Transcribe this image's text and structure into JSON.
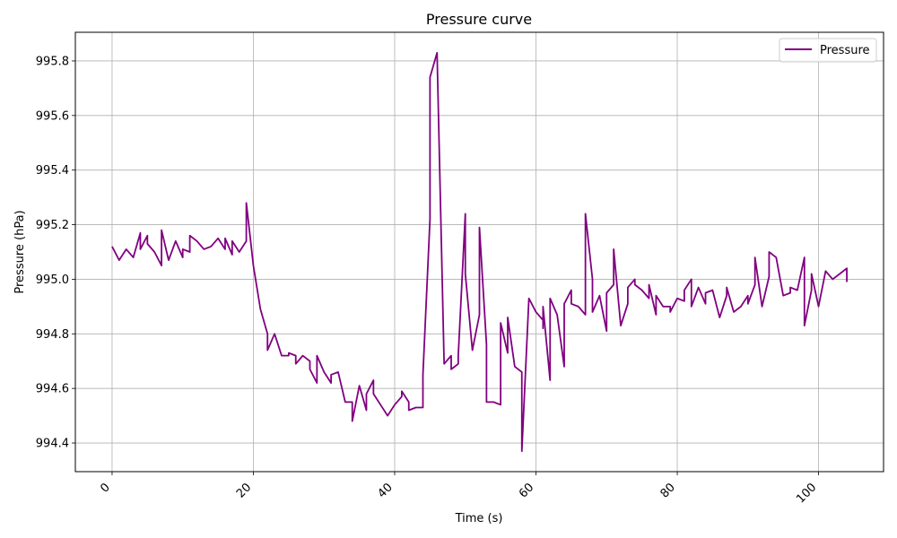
{
  "chart_data": {
    "type": "line",
    "title": "Pressure curve",
    "xlabel": "Time (s)",
    "ylabel": "Pressure (hPa)",
    "xlim": [
      -5.2,
      109.2
    ],
    "ylim": [
      994.295,
      995.905
    ],
    "xticks": [
      0,
      20,
      40,
      60,
      80,
      100
    ],
    "xtick_labels": [
      "0",
      "20",
      "40",
      "60",
      "80",
      "100"
    ],
    "yticks": [
      994.4,
      994.6,
      994.8,
      995.0,
      995.2,
      995.4,
      995.6,
      995.8
    ],
    "ytick_labels": [
      "994.4",
      "994.6",
      "994.8",
      "995.0",
      "995.2",
      "995.4",
      "995.6",
      "995.8"
    ],
    "grid": true,
    "legend_position": "top-right",
    "series": [
      {
        "name": "Pressure",
        "color": "#800080",
        "x": [
          0,
          1,
          2,
          3,
          4,
          4,
          5,
          5,
          6,
          7,
          7,
          8,
          9,
          10,
          10,
          11,
          11,
          12,
          13,
          14,
          15,
          16,
          16,
          17,
          17,
          18,
          19,
          19,
          20,
          21,
          22,
          22,
          23,
          24,
          25,
          25,
          26,
          26,
          27,
          28,
          28,
          29,
          29,
          30,
          31,
          31,
          32,
          33,
          34,
          34,
          35,
          36,
          36,
          37,
          37,
          38,
          39,
          40,
          41,
          41,
          42,
          42,
          43,
          44,
          44,
          45,
          45,
          46,
          47,
          48,
          48,
          49,
          49,
          50,
          50,
          51,
          52,
          52,
          53,
          53,
          54,
          55,
          55,
          56,
          56,
          57,
          58,
          58,
          59,
          60,
          61,
          61,
          61,
          62,
          62,
          63,
          64,
          64,
          65,
          65,
          66,
          67,
          67,
          68,
          68,
          69,
          70,
          70,
          71,
          71,
          72,
          73,
          73,
          74,
          74,
          75,
          76,
          76,
          77,
          77,
          78,
          79,
          79,
          80,
          81,
          81,
          82,
          82,
          83,
          84,
          84,
          85,
          86,
          87,
          87,
          88,
          89,
          90,
          90,
          91,
          91,
          92,
          93,
          93,
          94,
          95,
          96,
          96,
          97,
          98,
          98,
          99,
          99,
          100,
          101,
          102,
          103,
          104,
          104
        ],
        "y": [
          995.12,
          995.07,
          995.11,
          995.08,
          995.17,
          995.11,
          995.16,
          995.13,
          995.1,
          995.05,
          995.18,
          995.07,
          995.14,
          995.08,
          995.11,
          995.1,
          995.16,
          995.14,
          995.11,
          995.12,
          995.15,
          995.11,
          995.15,
          995.09,
          995.14,
          995.1,
          995.14,
          995.28,
          995.05,
          994.89,
          994.8,
          994.74,
          994.8,
          994.72,
          994.72,
          994.73,
          994.72,
          994.69,
          994.72,
          994.7,
          994.67,
          994.62,
          994.72,
          994.66,
          994.62,
          994.65,
          994.66,
          994.55,
          994.55,
          994.48,
          994.61,
          994.52,
          994.58,
          994.63,
          994.58,
          994.54,
          994.5,
          994.54,
          994.57,
          994.59,
          994.55,
          994.52,
          994.53,
          994.53,
          994.65,
          995.22,
          995.74,
          995.83,
          994.69,
          994.72,
          994.67,
          994.69,
          994.72,
          995.24,
          995.02,
          994.74,
          994.87,
          995.19,
          994.76,
          994.55,
          994.55,
          994.54,
          994.84,
          994.73,
          994.86,
          994.68,
          994.66,
          994.37,
          994.93,
          994.88,
          994.85,
          994.82,
          994.9,
          994.63,
          994.93,
          994.87,
          994.68,
          994.91,
          994.96,
          994.91,
          994.9,
          994.87,
          995.24,
          995.0,
          994.88,
          994.94,
          994.81,
          994.95,
          994.98,
          995.11,
          994.83,
          994.91,
          994.97,
          995.0,
          994.98,
          994.96,
          994.93,
          994.98,
          994.87,
          994.94,
          994.9,
          994.9,
          994.88,
          994.93,
          994.92,
          994.96,
          995.0,
          994.9,
          994.97,
          994.91,
          994.95,
          994.96,
          994.86,
          994.94,
          994.97,
          994.88,
          994.9,
          994.94,
          994.91,
          994.98,
          995.08,
          994.9,
          995.01,
          995.1,
          995.08,
          994.94,
          994.95,
          994.97,
          994.96,
          995.08,
          994.83,
          994.96,
          995.02,
          994.9,
          995.03,
          995.0,
          995.02,
          995.04,
          994.99
        ]
      }
    ]
  }
}
